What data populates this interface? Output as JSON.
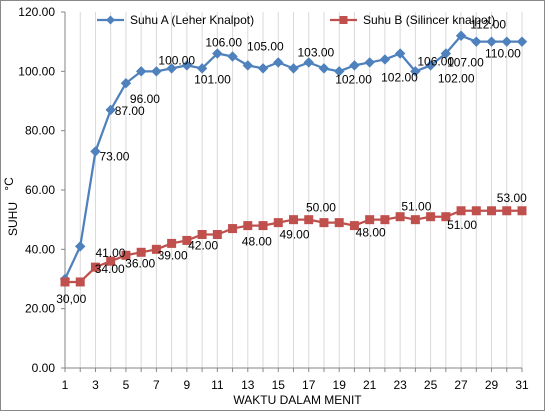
{
  "chart_data": {
    "type": "line",
    "xlabel": "WAKTU DALAM MENIT",
    "ylabel": "SUHU",
    "ylabel_unit": "°C",
    "ylim": [
      0,
      120
    ],
    "yticks": [
      0,
      20,
      40,
      60,
      80,
      100,
      120
    ],
    "xlim": [
      1,
      31
    ],
    "xticks": [
      1,
      3,
      5,
      7,
      9,
      11,
      13,
      15,
      17,
      19,
      21,
      23,
      25,
      27,
      29,
      31
    ],
    "grid": "vertical",
    "legend_position": "top",
    "x": [
      1,
      2,
      3,
      4,
      5,
      6,
      7,
      8,
      9,
      10,
      11,
      12,
      13,
      14,
      15,
      16,
      17,
      18,
      19,
      20,
      21,
      22,
      23,
      24,
      25,
      26,
      27,
      28,
      29,
      30,
      31
    ],
    "series": [
      {
        "name": "Suhu A (Leher Knalpot)",
        "color": "#4f81bd",
        "marker": "diamond",
        "values": [
          30,
          41,
          73,
          87,
          96,
          100,
          100,
          101,
          102,
          101,
          106,
          105,
          102,
          101,
          103,
          101,
          103,
          101,
          100,
          102,
          103,
          104,
          106,
          100,
          102,
          106,
          112,
          110,
          110,
          110,
          110
        ]
      },
      {
        "name": "Suhu B (Silincer knalpot)",
        "color": "#c0504d",
        "marker": "square",
        "values": [
          29,
          29,
          34,
          36,
          38,
          39,
          40,
          42,
          43,
          45,
          45,
          47,
          48,
          48,
          49,
          50,
          50,
          49,
          49,
          48,
          50,
          50,
          51,
          50,
          51,
          51,
          53,
          53,
          53,
          53,
          53
        ]
      }
    ],
    "annotations": [
      {
        "text": "73.00",
        "x": 3,
        "y": 73,
        "series": 0
      },
      {
        "text": "87.00",
        "x": 4,
        "y": 87,
        "series": 0
      },
      {
        "text": "96.00",
        "x": 5,
        "y": 96,
        "series": 0
      },
      {
        "text": "100.00",
        "x": 7,
        "y": 100,
        "series": 0
      },
      {
        "text": "101.00",
        "x": 10,
        "y": 101,
        "series": 0
      },
      {
        "text": "106.00",
        "x": 11,
        "y": 106,
        "series": 0
      },
      {
        "text": "105.00",
        "x": 14,
        "y": 105,
        "series": 0
      },
      {
        "text": "103.00",
        "x": 16,
        "y": 103,
        "series": 0
      },
      {
        "text": "102.00",
        "x": 19,
        "y": 102,
        "series": 0
      },
      {
        "text": "102.00",
        "x": 23,
        "y": 102,
        "series": 0
      },
      {
        "text": "106.00",
        "x": 24,
        "y": 106,
        "series": 0
      },
      {
        "text": "102.00",
        "x": 26,
        "y": 102,
        "series": 0
      },
      {
        "text": "112.00",
        "x": 28,
        "y": 112,
        "series": 0
      },
      {
        "text": "107.00",
        "x": 27,
        "y": 107,
        "series": 0
      },
      {
        "text": "110.00",
        "x": 31,
        "y": 110,
        "series": 0
      },
      {
        "text": "30,00",
        "x": 2,
        "y": 29,
        "series": 1
      },
      {
        "text": "41.00",
        "x": 3,
        "y": 34,
        "series": 1
      },
      {
        "text": "34.00",
        "x": 4,
        "y": 36,
        "series": 1
      },
      {
        "text": "36.00",
        "x": 6,
        "y": 39,
        "series": 1
      },
      {
        "text": "39.00",
        "x": 8,
        "y": 42,
        "series": 1
      },
      {
        "text": "42.00",
        "x": 10,
        "y": 45,
        "series": 1
      },
      {
        "text": "48.00",
        "x": 13,
        "y": 48,
        "series": 1
      },
      {
        "text": "49.00",
        "x": 16,
        "y": 50,
        "series": 1
      },
      {
        "text": "50.00",
        "x": 18,
        "y": 49,
        "series": 1
      },
      {
        "text": "48.00",
        "x": 21,
        "y": 50,
        "series": 1
      },
      {
        "text": "51.00",
        "x": 24,
        "y": 50,
        "series": 1
      },
      {
        "text": "51.00",
        "x": 27,
        "y": 53,
        "series": 1
      },
      {
        "text": "53.00",
        "x": 30,
        "y": 53,
        "series": 1
      }
    ]
  }
}
